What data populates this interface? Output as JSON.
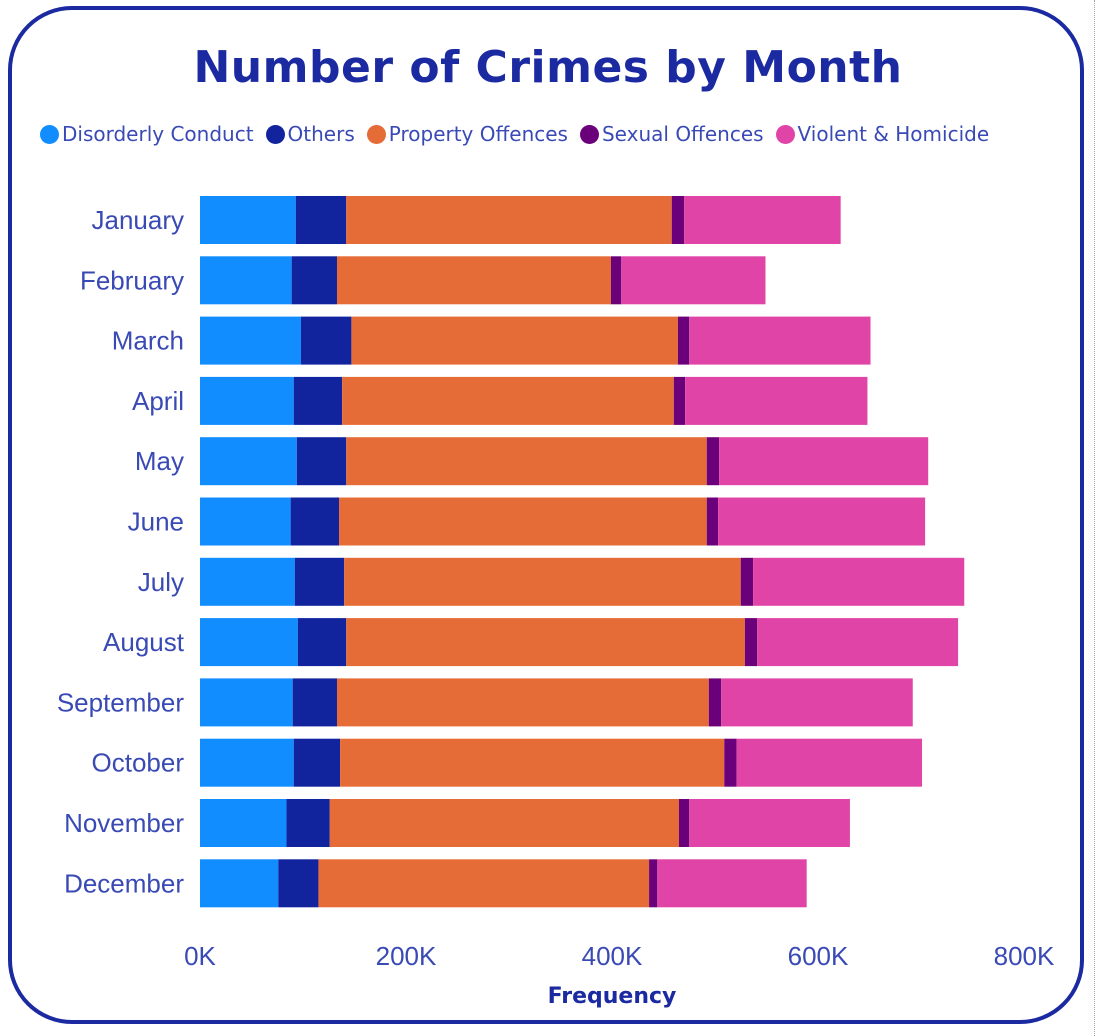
{
  "chart_data": {
    "type": "bar",
    "orientation": "horizontal",
    "stacked": true,
    "title": "Number of Crimes by Month",
    "xlabel": "Frequency",
    "ylabel": "",
    "xlim": [
      0,
      800000
    ],
    "x_ticks": [
      0,
      200000,
      400000,
      600000,
      800000
    ],
    "x_tick_labels": [
      "0K",
      "200K",
      "400K",
      "600K",
      "800K"
    ],
    "legend_position": "top-left",
    "categories": [
      "January",
      "February",
      "March",
      "April",
      "May",
      "June",
      "July",
      "August",
      "September",
      "October",
      "November",
      "December"
    ],
    "series": [
      {
        "name": "Disorderly Conduct",
        "color": "#118dff",
        "values": [
          93000,
          89000,
          98000,
          91000,
          94000,
          88000,
          92000,
          95000,
          90000,
          91000,
          84000,
          76000
        ]
      },
      {
        "name": "Others",
        "color": "#12239e",
        "values": [
          49000,
          44000,
          49000,
          47000,
          48000,
          47000,
          48000,
          47000,
          43000,
          45000,
          42000,
          39000
        ]
      },
      {
        "name": "Property Offences",
        "color": "#e66c37",
        "values": [
          316000,
          266000,
          317000,
          322000,
          350000,
          357000,
          385000,
          387000,
          361000,
          373000,
          339000,
          321000
        ]
      },
      {
        "name": "Sexual Offences",
        "color": "#6b007b",
        "values": [
          12000,
          10000,
          11000,
          11000,
          12000,
          11000,
          12000,
          12000,
          12000,
          12000,
          10000,
          8000
        ]
      },
      {
        "name": "Violent & Homicide",
        "color": "#e044a7",
        "values": [
          152000,
          140000,
          176000,
          177000,
          203000,
          201000,
          205000,
          195000,
          186000,
          180000,
          156000,
          145000
        ]
      }
    ]
  }
}
